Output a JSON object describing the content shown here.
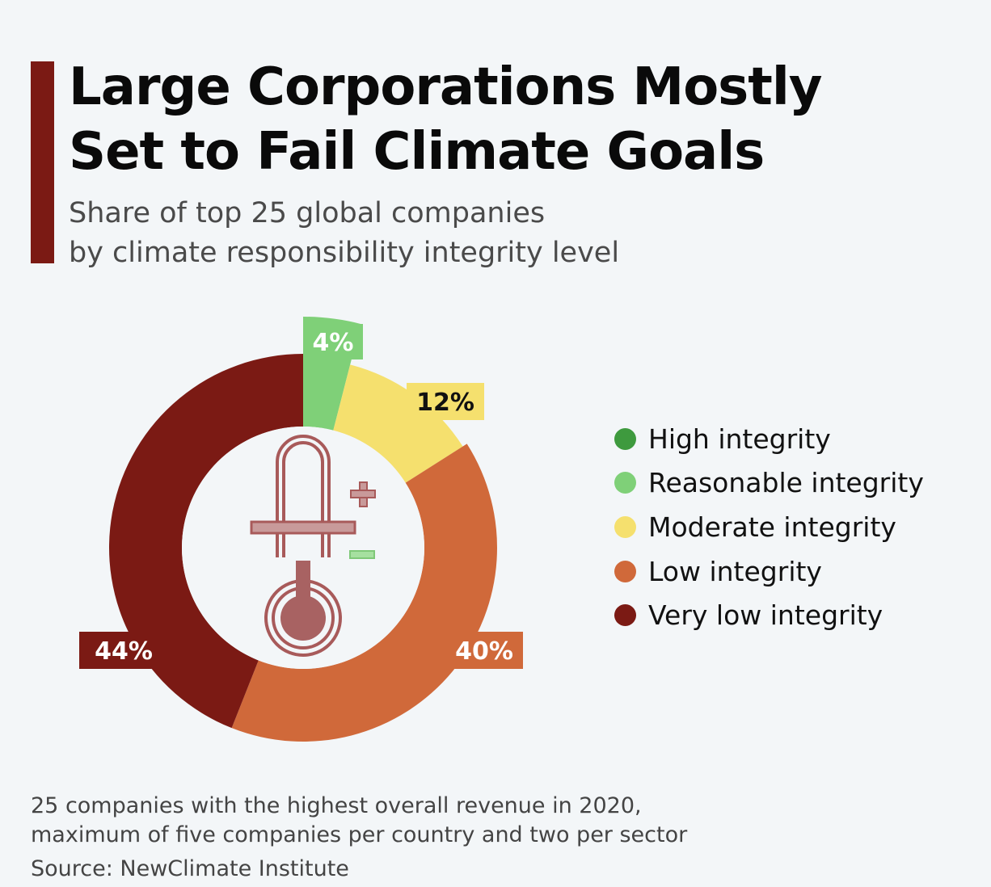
{
  "header": {
    "title_line1": "Large Corporations Mostly",
    "title_line2": "Set to Fail Climate Goals",
    "subtitle_line1": "Share of top 25 global companies",
    "subtitle_line2": "by climate responsibility integrity level"
  },
  "chart_data": {
    "type": "pie",
    "donut": true,
    "unit": "%",
    "slices": [
      {
        "name": "High integrity",
        "value": 0,
        "label": "",
        "color": "#3e9a3e"
      },
      {
        "name": "Reasonable integrity",
        "value": 4,
        "label": "4%",
        "color": "#7fd078",
        "label_text_color": "#ffffff"
      },
      {
        "name": "Moderate integrity",
        "value": 12,
        "label": "12%",
        "color": "#f5e06e",
        "label_text_color": "#111111"
      },
      {
        "name": "Low integrity",
        "value": 40,
        "label": "40%",
        "color": "#d0693a",
        "label_text_color": "#ffffff"
      },
      {
        "name": "Very low integrity",
        "value": 44,
        "label": "44%",
        "color": "#7b1a14",
        "label_text_color": "#ffffff"
      }
    ],
    "legend_position": "right",
    "center_icon": "thermometer-icon"
  },
  "legend": {
    "items": [
      {
        "label": "High integrity",
        "color": "#3e9a3e"
      },
      {
        "label": "Reasonable integrity",
        "color": "#7fd078"
      },
      {
        "label": "Moderate integrity",
        "color": "#f5e06e"
      },
      {
        "label": "Low integrity",
        "color": "#d0693a"
      },
      {
        "label": "Very low integrity",
        "color": "#7b1a14"
      }
    ]
  },
  "footer": {
    "note_line1": "25 companies with the highest overall revenue in 2020,",
    "note_line2": "maximum of five companies per country and two per sector",
    "source": "Source: NewClimate Institute"
  },
  "colors": {
    "accent": "#7b1a14",
    "background": "#f3f6f8",
    "thermometer": "#a85a5a"
  }
}
